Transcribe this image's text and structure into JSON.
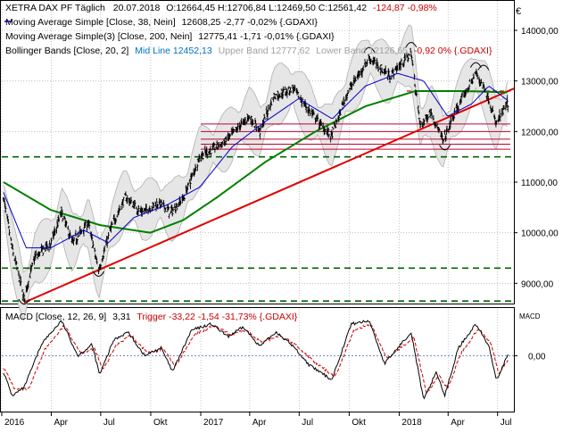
{
  "header": {
    "line1": {
      "symbol": "XETRA DAX PF Täglich",
      "date": "20.07.2018",
      "ohlc_text": "O:12664,45 H:12706,84 L:12469,50 C:12561,42",
      "change_text": "-124,87 -0,98%"
    },
    "line2": {
      "label": "Moving Average Simple [Close, 38, Nein]",
      "value_text": "12608,25 -2,77 -0,02% {.GDAXI}"
    },
    "line3": {
      "label": "Moving Average Simple(3) [Close, 200, Nein]",
      "value_text": "12775,41 -1,71 -0,01% {.GDAXI}"
    },
    "line4": {
      "label": "Bollinger Bands [Close, 20, 2]",
      "mid_text": "Mid Line 12452,13",
      "upper_text": "Upper Band 12777,62",
      "lower_text": "Lower Band 12126,65",
      "change_text": "-0,92 0% {.GDAXI}"
    },
    "macd_label": "MACD [Close, 12, 26, 9]",
    "macd_value": "3,31",
    "macd_trigger": "Trigger -33,22 -1,54 -31,73% {.GDAXI}",
    "macd_axis_title": "MACD",
    "corner_symbol": "€"
  },
  "chart_data": [
    {
      "type": "bar",
      "subtype": "ohlc-price-chart",
      "x_tick_labels": [
        "2016",
        "Apr",
        "Jul",
        "Okt",
        "2017",
        "Apr",
        "Jul",
        "Okt",
        "2018",
        "Apr",
        "Jul"
      ],
      "x_range": [
        "2016-01-01",
        "2018-07-31"
      ],
      "y_tick_labels": [
        "9000,00",
        "10000,00",
        "11000,00",
        "12000,00",
        "13000,00",
        "14000,00"
      ],
      "y_ticks": [
        9000,
        10000,
        11000,
        12000,
        13000,
        14000
      ],
      "ylim": [
        8600,
        14600
      ],
      "grid": "dotted",
      "price_path": [
        [
          "2016-01-04",
          10700
        ],
        [
          "2016-01-20",
          9700
        ],
        [
          "2016-02-11",
          8700
        ],
        [
          "2016-03-01",
          9500
        ],
        [
          "2016-04-01",
          9800
        ],
        [
          "2016-04-20",
          10400
        ],
        [
          "2016-05-10",
          9800
        ],
        [
          "2016-06-08",
          10200
        ],
        [
          "2016-06-27",
          9250
        ],
        [
          "2016-07-20",
          10100
        ],
        [
          "2016-08-15",
          10700
        ],
        [
          "2016-09-15",
          10400
        ],
        [
          "2016-10-15",
          10600
        ],
        [
          "2016-11-07",
          10400
        ],
        [
          "2016-12-01",
          10700
        ],
        [
          "2016-12-30",
          11500
        ],
        [
          "2017-02-15",
          11800
        ],
        [
          "2017-03-31",
          12300
        ],
        [
          "2017-04-20",
          12000
        ],
        [
          "2017-05-15",
          12700
        ],
        [
          "2017-06-20",
          12850
        ],
        [
          "2017-07-20",
          12400
        ],
        [
          "2017-08-29",
          11900
        ],
        [
          "2017-09-29",
          12800
        ],
        [
          "2017-11-07",
          13450
        ],
        [
          "2017-12-15",
          13100
        ],
        [
          "2018-01-23",
          13550
        ],
        [
          "2018-02-09",
          12100
        ],
        [
          "2018-02-28",
          12400
        ],
        [
          "2018-03-23",
          11800
        ],
        [
          "2018-04-15",
          12400
        ],
        [
          "2018-05-22",
          13150
        ],
        [
          "2018-06-10",
          12800
        ],
        [
          "2018-06-28",
          12150
        ],
        [
          "2018-07-20",
          12560
        ]
      ],
      "sma38": [
        [
          "2016-01-04",
          10800
        ],
        [
          "2016-02-15",
          9700
        ],
        [
          "2016-03-31",
          9700
        ],
        [
          "2016-05-31",
          10050
        ],
        [
          "2016-07-15",
          9800
        ],
        [
          "2016-08-31",
          10300
        ],
        [
          "2016-10-31",
          10550
        ],
        [
          "2016-12-30",
          10900
        ],
        [
          "2017-02-28",
          11700
        ],
        [
          "2017-04-30",
          12200
        ],
        [
          "2017-06-30",
          12650
        ],
        [
          "2017-08-31",
          12250
        ],
        [
          "2017-10-31",
          12900
        ],
        [
          "2017-12-29",
          13150
        ],
        [
          "2018-02-15",
          13000
        ],
        [
          "2018-03-31",
          12300
        ],
        [
          "2018-05-15",
          12550
        ],
        [
          "2018-06-15",
          12900
        ],
        [
          "2018-07-20",
          12608
        ]
      ],
      "sma200": [
        [
          "2016-01-04",
          11000
        ],
        [
          "2016-03-31",
          10450
        ],
        [
          "2016-06-30",
          10150
        ],
        [
          "2016-09-30",
          10000
        ],
        [
          "2016-11-30",
          10250
        ],
        [
          "2017-01-31",
          10700
        ],
        [
          "2017-04-30",
          11400
        ],
        [
          "2017-07-31",
          12000
        ],
        [
          "2017-10-31",
          12500
        ],
        [
          "2018-01-31",
          12800
        ],
        [
          "2018-04-30",
          12800
        ],
        [
          "2018-07-20",
          12775
        ]
      ],
      "bollinger_upper_lower_width": 450,
      "trendline_red": [
        [
          "2016-02-11",
          8620
        ],
        [
          "2018-07-31",
          12850
        ]
      ],
      "horizontal_lines_dashed_green": [
        11500,
        9300,
        8650
      ],
      "horizontal_lines_red": [
        12150,
        12000,
        11850,
        11750,
        11650
      ],
      "horizontal_line_red_dashed": 12800
    },
    {
      "type": "line",
      "subtype": "macd",
      "y_tick_labels": [
        "0,00"
      ],
      "y_ticks": [
        0
      ],
      "ylim": [
        -350,
        300
      ],
      "macd": [
        [
          "2016-01-04",
          -100
        ],
        [
          "2016-01-20",
          -250
        ],
        [
          "2016-02-11",
          -200
        ],
        [
          "2016-03-15",
          80
        ],
        [
          "2016-04-20",
          220
        ],
        [
          "2016-05-20",
          0
        ],
        [
          "2016-06-15",
          70
        ],
        [
          "2016-06-29",
          -120
        ],
        [
          "2016-07-25",
          100
        ],
        [
          "2016-08-20",
          150
        ],
        [
          "2016-09-20",
          0
        ],
        [
          "2016-10-20",
          50
        ],
        [
          "2016-11-10",
          -100
        ],
        [
          "2016-12-15",
          160
        ],
        [
          "2017-01-20",
          200
        ],
        [
          "2017-02-20",
          120
        ],
        [
          "2017-03-20",
          180
        ],
        [
          "2017-04-20",
          60
        ],
        [
          "2017-05-20",
          150
        ],
        [
          "2017-06-20",
          60
        ],
        [
          "2017-07-20",
          -60
        ],
        [
          "2017-08-30",
          -150
        ],
        [
          "2017-10-05",
          200
        ],
        [
          "2017-11-07",
          220
        ],
        [
          "2017-12-05",
          -50
        ],
        [
          "2018-01-23",
          150
        ],
        [
          "2018-02-15",
          -280
        ],
        [
          "2018-03-10",
          -100
        ],
        [
          "2018-03-26",
          -250
        ],
        [
          "2018-04-20",
          50
        ],
        [
          "2018-05-22",
          200
        ],
        [
          "2018-06-15",
          60
        ],
        [
          "2018-06-29",
          -150
        ],
        [
          "2018-07-20",
          3
        ]
      ],
      "trigger": [
        [
          "2016-01-04",
          -70
        ],
        [
          "2016-01-25",
          -210
        ],
        [
          "2016-02-20",
          -210
        ],
        [
          "2016-03-20",
          40
        ],
        [
          "2016-04-25",
          190
        ],
        [
          "2016-05-25",
          20
        ],
        [
          "2016-06-20",
          40
        ],
        [
          "2016-07-05",
          -90
        ],
        [
          "2016-07-30",
          70
        ],
        [
          "2016-08-25",
          130
        ],
        [
          "2016-09-25",
          20
        ],
        [
          "2016-10-25",
          40
        ],
        [
          "2016-11-15",
          -70
        ],
        [
          "2016-12-20",
          130
        ],
        [
          "2017-01-25",
          190
        ],
        [
          "2017-02-25",
          130
        ],
        [
          "2017-03-25",
          160
        ],
        [
          "2017-04-25",
          80
        ],
        [
          "2017-05-25",
          130
        ],
        [
          "2017-06-25",
          70
        ],
        [
          "2017-07-25",
          -30
        ],
        [
          "2017-09-05",
          -130
        ],
        [
          "2017-10-10",
          160
        ],
        [
          "2017-11-10",
          200
        ],
        [
          "2017-12-10",
          -20
        ],
        [
          "2018-01-28",
          120
        ],
        [
          "2018-02-20",
          -240
        ],
        [
          "2018-03-15",
          -120
        ],
        [
          "2018-03-31",
          -210
        ],
        [
          "2018-04-25",
          20
        ],
        [
          "2018-05-27",
          170
        ],
        [
          "2018-06-20",
          70
        ],
        [
          "2018-07-03",
          -110
        ],
        [
          "2018-07-20",
          -33
        ]
      ]
    }
  ],
  "colors": {
    "price": "#000000",
    "sma38": "#0000cc",
    "sma200": "#008000",
    "bollinger": "#b0b0b0",
    "bollinger_fill": "#e6e6e6",
    "trendline": "#e00000",
    "hline_green": "#006400",
    "hline_red": "#c00030",
    "macd": "#000000",
    "trigger": "#cc0000",
    "zero_line": "#5a7ec8",
    "grid": "#b8b8b8",
    "axis_text": "#000000",
    "change_negative": "#cc0000",
    "upper_band_text": "#a0a0a0"
  }
}
